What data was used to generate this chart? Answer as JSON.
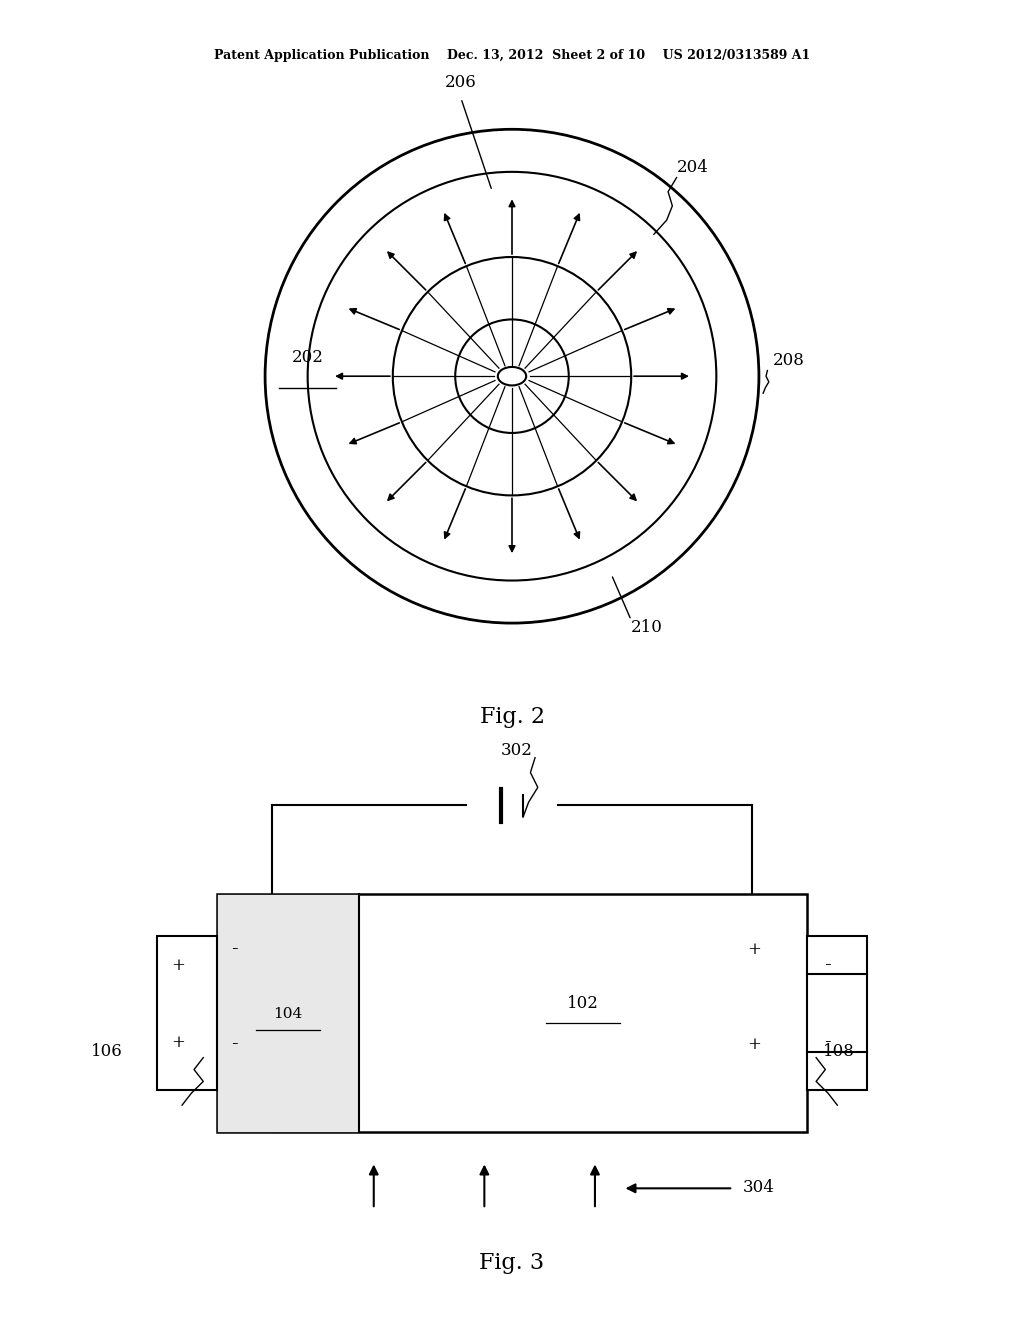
{
  "bg_color": "#ffffff",
  "line_color": "#000000",
  "header": "Patent Application Publication    Dec. 13, 2012  Sheet 2 of 10    US 2012/0313589 A1",
  "fig2_caption": "Fig. 2",
  "fig3_caption": "Fig. 3",
  "arrow_angles_deg": [
    90,
    67.5,
    45,
    22.5,
    0,
    -22.5,
    -45,
    -67.5,
    -90,
    -112.5,
    -135,
    -157.5,
    180,
    157.5,
    135,
    112.5
  ]
}
